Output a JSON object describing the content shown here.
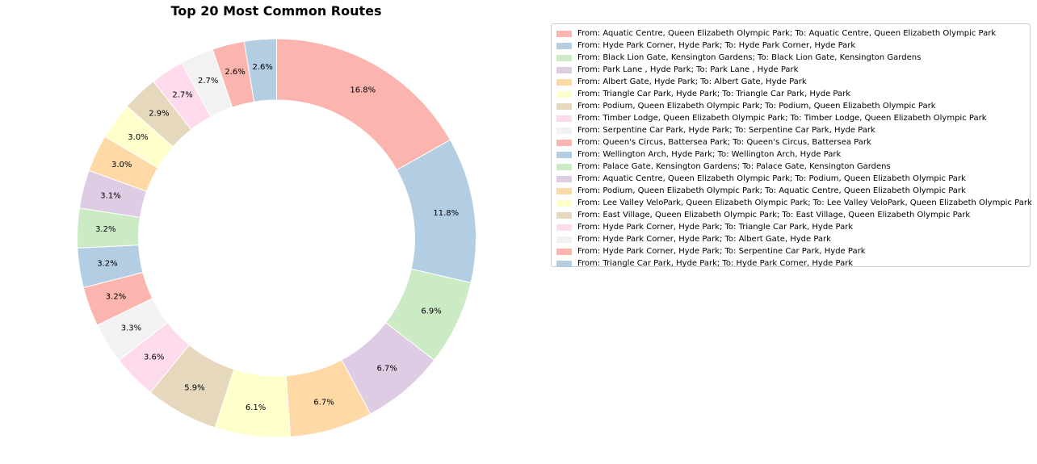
{
  "chart_data": {
    "type": "pie",
    "variant": "donut",
    "title": "Top 20 Most Common Routes",
    "legend_placement": "right",
    "start_angle_deg": 90,
    "direction": "clockwise",
    "slices": [
      {
        "label": "From: Aquatic Centre, Queen Elizabeth Olympic Park; To: Aquatic Centre, Queen Elizabeth Olympic Park",
        "value": 16.8,
        "pct_label": "16.8%",
        "color": "#fbb4ae"
      },
      {
        "label": "From: Hyde Park Corner, Hyde Park; To: Hyde Park Corner, Hyde Park",
        "value": 11.8,
        "pct_label": "11.8%",
        "color": "#b3cde3"
      },
      {
        "label": "From: Black Lion Gate, Kensington Gardens; To: Black Lion Gate, Kensington Gardens",
        "value": 6.9,
        "pct_label": "6.9%",
        "color": "#ccebc5"
      },
      {
        "label": "From: Park Lane , Hyde Park; To: Park Lane , Hyde Park",
        "value": 6.7,
        "pct_label": "6.7%",
        "color": "#decbe4"
      },
      {
        "label": "From: Albert Gate, Hyde Park; To: Albert Gate, Hyde Park",
        "value": 6.7,
        "pct_label": "6.7%",
        "color": "#fed9a6"
      },
      {
        "label": "From: Triangle Car Park, Hyde Park; To: Triangle Car Park, Hyde Park",
        "value": 6.1,
        "pct_label": "6.1%",
        "color": "#ffffcc"
      },
      {
        "label": "From: Podium, Queen Elizabeth Olympic Park; To: Podium, Queen Elizabeth Olympic Park",
        "value": 5.9,
        "pct_label": "5.9%",
        "color": "#e5d8bd"
      },
      {
        "label": "From: Timber Lodge, Queen Elizabeth Olympic Park; To: Timber Lodge, Queen Elizabeth Olympic Park",
        "value": 3.6,
        "pct_label": "3.6%",
        "color": "#fddaec"
      },
      {
        "label": "From: Serpentine Car Park, Hyde Park; To: Serpentine Car Park, Hyde Park",
        "value": 3.3,
        "pct_label": "3.3%",
        "color": "#f2f2f2"
      },
      {
        "label": "From: Queen's Circus, Battersea Park; To: Queen's Circus, Battersea Park",
        "value": 3.2,
        "pct_label": "3.2%",
        "color": "#fbb4ae"
      },
      {
        "label": "From: Wellington Arch, Hyde Park; To: Wellington Arch, Hyde Park",
        "value": 3.2,
        "pct_label": "3.2%",
        "color": "#b3cde3"
      },
      {
        "label": "From: Palace Gate, Kensington Gardens; To: Palace Gate, Kensington Gardens",
        "value": 3.2,
        "pct_label": "3.2%",
        "color": "#ccebc5"
      },
      {
        "label": "From: Aquatic Centre, Queen Elizabeth Olympic Park; To: Podium, Queen Elizabeth Olympic Park",
        "value": 3.1,
        "pct_label": "3.1%",
        "color": "#decbe4"
      },
      {
        "label": "From: Podium, Queen Elizabeth Olympic Park; To: Aquatic Centre, Queen Elizabeth Olympic Park",
        "value": 3.0,
        "pct_label": "3.0%",
        "color": "#fed9a6"
      },
      {
        "label": "From: Lee Valley VeloPark, Queen Elizabeth Olympic Park; To: Lee Valley VeloPark, Queen Elizabeth Olympic Park",
        "value": 3.0,
        "pct_label": "3.0%",
        "color": "#ffffcc"
      },
      {
        "label": "From: East Village, Queen Elizabeth Olympic Park; To: East Village, Queen Elizabeth Olympic Park",
        "value": 2.9,
        "pct_label": "2.9%",
        "color": "#e5d8bd"
      },
      {
        "label": "From: Hyde Park Corner, Hyde Park; To: Triangle Car Park, Hyde Park",
        "value": 2.7,
        "pct_label": "2.7%",
        "color": "#fddaec"
      },
      {
        "label": "From: Hyde Park Corner, Hyde Park; To: Albert Gate, Hyde Park",
        "value": 2.7,
        "pct_label": "2.7%",
        "color": "#f2f2f2"
      },
      {
        "label": "From: Hyde Park Corner, Hyde Park; To: Serpentine Car Park, Hyde Park",
        "value": 2.6,
        "pct_label": "2.6%",
        "color": "#fbb4ae"
      },
      {
        "label": "From: Triangle Car Park, Hyde Park; To: Hyde Park Corner, Hyde Park",
        "value": 2.6,
        "pct_label": "2.6%",
        "color": "#b3cde3"
      }
    ]
  }
}
